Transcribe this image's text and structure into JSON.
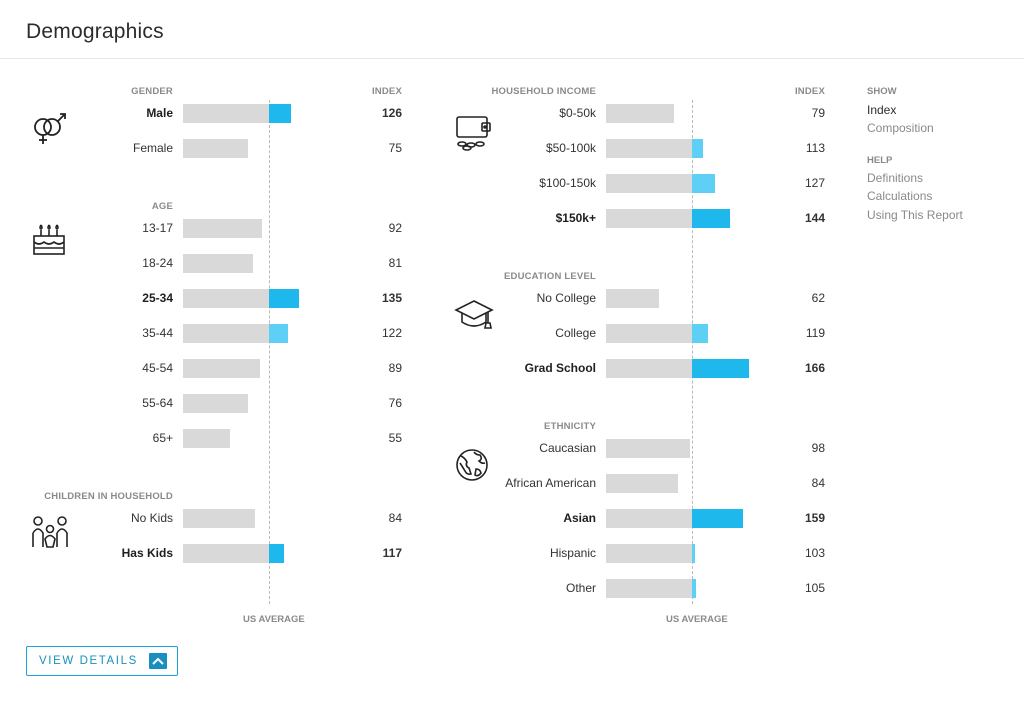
{
  "title": "Demographics",
  "columns": [
    {
      "index_header": "INDEX",
      "avg_label": "US AVERAGE",
      "sections": [
        {
          "name": "GENDER",
          "icon": "gender-icon",
          "rows": [
            {
              "label": "Male",
              "value": "126",
              "bold": true
            },
            {
              "label": "Female",
              "value": "75",
              "bold": false
            }
          ]
        },
        {
          "name": "AGE",
          "icon": "birthday-cake-icon",
          "rows": [
            {
              "label": "13-17",
              "value": "92",
              "bold": false
            },
            {
              "label": "18-24",
              "value": "81",
              "bold": false
            },
            {
              "label": "25-34",
              "value": "135",
              "bold": true
            },
            {
              "label": "35-44",
              "value": "122",
              "bold": false
            },
            {
              "label": "45-54",
              "value": "89",
              "bold": false
            },
            {
              "label": "55-64",
              "value": "76",
              "bold": false
            },
            {
              "label": "65+",
              "value": "55",
              "bold": false
            }
          ]
        },
        {
          "name": "CHILDREN IN HOUSEHOLD",
          "icon": "family-icon",
          "rows": [
            {
              "label": "No Kids",
              "value": "84",
              "bold": false
            },
            {
              "label": "Has Kids",
              "value": "117",
              "bold": true
            }
          ]
        }
      ]
    },
    {
      "index_header": "INDEX",
      "avg_label": "US AVERAGE",
      "sections": [
        {
          "name": "HOUSEHOLD INCOME",
          "icon": "wallet-icon",
          "rows": [
            {
              "label": "$0-50k",
              "value": "79",
              "bold": false
            },
            {
              "label": "$50-100k",
              "value": "113",
              "bold": false
            },
            {
              "label": "$100-150k",
              "value": "127",
              "bold": false
            },
            {
              "label": "$150k+",
              "value": "144",
              "bold": true
            }
          ]
        },
        {
          "name": "EDUCATION LEVEL",
          "icon": "graduation-cap-icon",
          "rows": [
            {
              "label": "No College",
              "value": "62",
              "bold": false
            },
            {
              "label": "College",
              "value": "119",
              "bold": false
            },
            {
              "label": "Grad School",
              "value": "166",
              "bold": true
            }
          ]
        },
        {
          "name": "ETHNICITY",
          "icon": "globe-icon",
          "rows": [
            {
              "label": "Caucasian",
              "value": "98",
              "bold": false
            },
            {
              "label": "African American",
              "value": "84",
              "bold": false
            },
            {
              "label": "Asian",
              "value": "159",
              "bold": true
            },
            {
              "label": "Hispanic",
              "value": "103",
              "bold": false
            },
            {
              "label": "Other",
              "value": "105",
              "bold": false
            }
          ]
        }
      ]
    }
  ],
  "sidebar": {
    "show_header": "SHOW",
    "show_items": [
      {
        "label": "Index",
        "active": true
      },
      {
        "label": "Composition",
        "active": false
      }
    ],
    "help_header": "HELP",
    "help_items": [
      {
        "label": "Definitions"
      },
      {
        "label": "Calculations"
      },
      {
        "label": "Using This Report"
      }
    ]
  },
  "view_details_button": "VIEW DETAILS",
  "colors": {
    "bar_gray": "#d9d9d9",
    "bar_blue": "#1fb8ec",
    "bar_light_blue": "#5fd0f5",
    "accent": "#1a8fbf"
  }
}
